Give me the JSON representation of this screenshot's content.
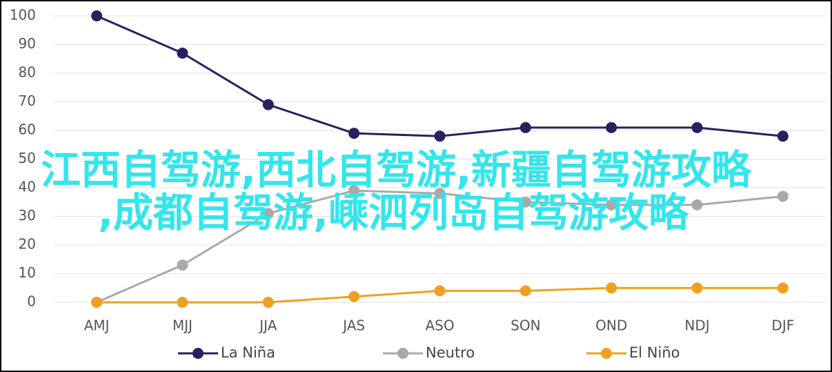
{
  "chart_data": {
    "type": "line",
    "categories": [
      "AMJ",
      "MJJ",
      "JJA",
      "JAS",
      "ASO",
      "SON",
      "OND",
      "NDJ",
      "DJF"
    ],
    "series": [
      {
        "name": "La Niña",
        "color": "#2a1f5e",
        "values": [
          100,
          87,
          69,
          59,
          58,
          61,
          61,
          61,
          58
        ]
      },
      {
        "name": "Neutro",
        "color": "#a9a9a9",
        "values": [
          0,
          13,
          31,
          39,
          38,
          35,
          34,
          34,
          37
        ]
      },
      {
        "name": "El Niño",
        "color": "#f0a020",
        "values": [
          0,
          0,
          0,
          2,
          4,
          4,
          5,
          5,
          5
        ]
      }
    ],
    "ylim": [
      0,
      100
    ],
    "yticks": [
      0,
      10,
      20,
      30,
      40,
      50,
      60,
      70,
      80,
      90,
      100
    ],
    "grid": true,
    "legend": "bottom",
    "overlay_text": [
      "江西自驾游,西北自驾游,新疆自驾游攻略",
      ",成都自驾游,嵊泗列岛自驾游攻略"
    ]
  }
}
